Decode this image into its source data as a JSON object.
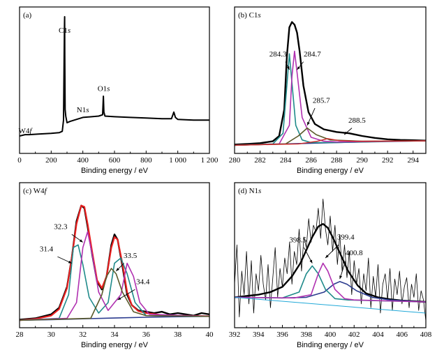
{
  "panels": [
    {
      "id": "a",
      "label": "(a)",
      "frame": {
        "x": 28,
        "y": 10,
        "w": 272,
        "h": 210
      },
      "xlim": [
        0,
        1200
      ],
      "xticks": [
        0,
        200,
        400,
        600,
        800,
        1000,
        1200
      ],
      "xtick_labels": [
        "0",
        "200",
        "400",
        "600",
        "800",
        "1 000",
        "1 200"
      ],
      "xlabel": "Binding energy / eV",
      "ylim": [
        0,
        100
      ],
      "annotations": [
        {
          "text": "C1s",
          "x": 285,
          "y": 88
        },
        {
          "text": "O1s",
          "x": 532,
          "y": 44
        },
        {
          "text": "N1s",
          "x": 400,
          "y": 28
        },
        {
          "text": "W4f",
          "x": 35,
          "y": 12
        }
      ],
      "series": [
        {
          "color": "#000000",
          "width": 2.0,
          "x": [
            0,
            35,
            60,
            120,
            200,
            250,
            270,
            278,
            282,
            284,
            285,
            286,
            288,
            292,
            300,
            320,
            400,
            500,
            525,
            530,
            533,
            540,
            600,
            700,
            800,
            900,
            960,
            975,
            985,
            1000,
            1100,
            1200
          ],
          "y": [
            10,
            11,
            11,
            11.5,
            12,
            12.5,
            13.5,
            22,
            70,
            95,
            100,
            70,
            30,
            25,
            20,
            21,
            24,
            25,
            26,
            40,
            28,
            25,
            24.5,
            24,
            23.5,
            23,
            23,
            28,
            24,
            22.5,
            22,
            22
          ]
        }
      ]
    },
    {
      "id": "b",
      "label": "(b) C1s",
      "frame": {
        "x": 336,
        "y": 10,
        "w": 274,
        "h": 210
      },
      "xlim": [
        280,
        295
      ],
      "xticks": [
        280,
        282,
        284,
        286,
        288,
        290,
        292,
        294
      ],
      "xtick_labels": [
        "280",
        "282",
        "284",
        "286",
        "288",
        "290",
        "292",
        "294"
      ],
      "xlabel": "Binding energy / eV",
      "ylim": [
        0,
        100
      ],
      "annotations": [
        {
          "text": "284.3",
          "x": 283.4,
          "y": 70
        },
        {
          "text": "284.7",
          "x": 286.1,
          "y": 70
        },
        {
          "text": "285.7",
          "x": 286.8,
          "y": 35
        },
        {
          "text": "288.5",
          "x": 289.6,
          "y": 20
        }
      ],
      "series": [
        {
          "color": "#000000",
          "width": 2.4,
          "x": [
            280,
            281,
            282,
            283,
            283.5,
            283.9,
            284.1,
            284.3,
            284.5,
            284.7,
            284.9,
            285.1,
            285.4,
            285.8,
            286.3,
            287,
            288,
            289,
            290,
            291,
            292,
            293,
            294,
            295
          ],
          "y": [
            3.5,
            4,
            4.6,
            6,
            10,
            30,
            70,
            92,
            96,
            94,
            88,
            74,
            48,
            28,
            19,
            15,
            13,
            12,
            10,
            8.5,
            7.5,
            7,
            6.8,
            6.5
          ]
        },
        {
          "color": "#2a3a8e",
          "width": 1.6,
          "x": [
            280,
            282,
            284,
            286,
            288,
            290,
            292,
            294,
            295
          ],
          "y": [
            3,
            3.5,
            4,
            4.5,
            5,
            5.5,
            6,
            6.2,
            6.3
          ]
        },
        {
          "color": "#1f8a8a",
          "width": 1.6,
          "x": [
            280,
            283,
            283.8,
            284.1,
            284.3,
            284.5,
            284.8,
            285.3,
            286,
            288,
            295
          ],
          "y": [
            3,
            4,
            12,
            48,
            72,
            50,
            18,
            7,
            5,
            5,
            6.3
          ]
        },
        {
          "color": "#b030b0",
          "width": 1.6,
          "x": [
            280,
            283.5,
            284.3,
            284.5,
            284.7,
            284.9,
            285.3,
            286,
            287,
            288,
            295
          ],
          "y": [
            3,
            4,
            18,
            55,
            74,
            58,
            24,
            9,
            6,
            5.5,
            6.3
          ]
        },
        {
          "color": "#5a5a2a",
          "width": 1.6,
          "x": [
            280,
            284,
            285,
            285.7,
            286.4,
            287.5,
            290,
            295
          ],
          "y": [
            3,
            4,
            10,
            16,
            11,
            7,
            6,
            6.3
          ]
        },
        {
          "color": "#cc2a2a",
          "width": 1.4,
          "x": [
            280,
            285,
            286.5,
            287.3,
            288.2,
            289.5,
            295
          ],
          "y": [
            3,
            4,
            6,
            8,
            6.5,
            6,
            6.3
          ]
        }
      ]
    },
    {
      "id": "c",
      "label": "(c) W4f",
      "frame": {
        "x": 28,
        "y": 262,
        "w": 272,
        "h": 208
      },
      "xlim": [
        28,
        40
      ],
      "xticks": [
        28,
        30,
        32,
        34,
        36,
        38,
        40
      ],
      "xtick_labels": [
        "28",
        "30",
        "32",
        "34",
        "36",
        "38",
        "40"
      ],
      "xlabel": "Binding energy / eV",
      "ylim": [
        0,
        100
      ],
      "annotations": [
        {
          "text": "32.3",
          "x": 30.6,
          "y": 72
        },
        {
          "text": "31.4",
          "x": 29.7,
          "y": 55
        },
        {
          "text": "33.5",
          "x": 35.0,
          "y": 50
        },
        {
          "text": "34.4",
          "x": 35.8,
          "y": 30
        }
      ],
      "series": [
        {
          "color": "#000000",
          "width": 2.4,
          "x": [
            28,
            29,
            30,
            30.5,
            31,
            31.3,
            31.6,
            31.9,
            32.1,
            32.3,
            32.6,
            32.9,
            33.2,
            33.5,
            33.8,
            34.0,
            34.2,
            34.5,
            34.8,
            35.1,
            35.5,
            36,
            36.5,
            37,
            37.5,
            38,
            38.5,
            39,
            39.5,
            40
          ],
          "y": [
            3,
            4,
            7,
            12,
            28,
            50,
            78,
            90,
            88,
            74,
            52,
            32,
            26,
            36,
            60,
            68,
            64,
            44,
            22,
            14,
            10,
            9,
            8,
            9,
            7,
            8,
            7,
            6,
            8,
            7
          ]
        },
        {
          "color": "#e82020",
          "width": 2.2,
          "x": [
            28,
            29,
            30,
            30.5,
            31,
            31.3,
            31.6,
            31.9,
            32.1,
            32.3,
            32.6,
            32.9,
            33.2,
            33.5,
            33.8,
            34.0,
            34.2,
            34.5,
            34.8,
            35.1,
            35.5,
            36,
            37,
            38,
            39,
            40
          ],
          "y": [
            2.5,
            3.5,
            6,
            11,
            27,
            50,
            76,
            90,
            89,
            76,
            54,
            33,
            27,
            36,
            58,
            66,
            64,
            46,
            24,
            14,
            9.5,
            8,
            6.5,
            6,
            5.8,
            5.6
          ]
        },
        {
          "color": "#2a3a8e",
          "width": 1.6,
          "x": [
            28,
            30,
            32,
            34,
            36,
            38,
            40
          ],
          "y": [
            2.5,
            3,
            3.6,
            4.2,
            4.8,
            5.2,
            5.5
          ]
        },
        {
          "color": "#1f8a8a",
          "width": 1.6,
          "x": [
            28,
            30.5,
            31.1,
            31.4,
            31.7,
            32.0,
            32.4,
            33,
            33.6,
            34.0,
            34.4,
            34.8,
            35.3,
            36,
            40
          ],
          "y": [
            2.5,
            4,
            22,
            58,
            60,
            45,
            20,
            8,
            16,
            46,
            50,
            38,
            16,
            6,
            5.5
          ]
        },
        {
          "color": "#b030b0",
          "width": 1.6,
          "x": [
            28,
            31,
            31.6,
            32.0,
            32.3,
            32.6,
            33.0,
            33.6,
            34.4,
            34.8,
            35.2,
            35.6,
            36.2,
            40
          ],
          "y": [
            2.5,
            4,
            16,
            58,
            70,
            52,
            24,
            10,
            22,
            46,
            36,
            16,
            7,
            5.5
          ]
        },
        {
          "color": "#5a5a2a",
          "width": 1.6,
          "x": [
            28,
            32.5,
            33.2,
            33.5,
            33.8,
            34.1,
            34.5,
            35.2,
            36,
            40
          ],
          "y": [
            2.5,
            4,
            22,
            36,
            42,
            38,
            24,
            9,
            6,
            5.5
          ]
        }
      ]
    },
    {
      "id": "d",
      "label": "(d) N1s",
      "frame": {
        "x": 336,
        "y": 262,
        "w": 274,
        "h": 208
      },
      "xlim": [
        392,
        408
      ],
      "xticks": [
        392,
        394,
        396,
        398,
        400,
        402,
        404,
        406,
        408
      ],
      "xtick_labels": [
        "392",
        "394",
        "396",
        "398",
        "400",
        "402",
        "404",
        "406",
        "408"
      ],
      "xlabel": "Binding energy / eV",
      "ylim": [
        0,
        100
      ],
      "annotations": [
        {
          "text": "398.5",
          "x": 397.3,
          "y": 62
        },
        {
          "text": "399.4",
          "x": 401.3,
          "y": 64
        },
        {
          "text": "400.8",
          "x": 402.0,
          "y": 52
        }
      ],
      "series": [
        {
          "color": "#000000",
          "width": 0.8,
          "x": [
            392,
            392.2,
            392.4,
            392.6,
            392.8,
            393,
            393.2,
            393.4,
            393.6,
            393.8,
            394,
            394.2,
            394.4,
            394.6,
            394.8,
            395,
            395.2,
            395.4,
            395.6,
            395.8,
            396,
            396.2,
            396.4,
            396.6,
            396.8,
            397,
            397.2,
            397.4,
            397.6,
            397.8,
            398,
            398.2,
            398.4,
            398.6,
            398.8,
            399,
            399.2,
            399.4,
            399.6,
            399.8,
            400,
            400.2,
            400.4,
            400.6,
            400.8,
            401,
            401.2,
            401.4,
            401.6,
            401.8,
            402,
            402.2,
            402.4,
            402.6,
            402.8,
            403,
            403.2,
            403.4,
            403.6,
            403.8,
            404,
            404.2,
            404.4,
            404.6,
            404.8,
            405,
            405.2,
            405.4,
            405.6,
            405.8,
            406,
            406.2,
            406.4,
            406.6,
            406.8,
            407,
            407.2,
            407.4,
            407.6,
            407.8,
            408
          ],
          "y": [
            30,
            60,
            5,
            40,
            22,
            55,
            15,
            48,
            8,
            38,
            25,
            52,
            30,
            18,
            45,
            12,
            35,
            58,
            20,
            42,
            28,
            50,
            38,
            62,
            30,
            55,
            45,
            72,
            40,
            66,
            58,
            80,
            62,
            75,
            70,
            88,
            65,
            95,
            72,
            60,
            82,
            55,
            75,
            45,
            68,
            40,
            60,
            35,
            55,
            22,
            48,
            30,
            42,
            15,
            38,
            25,
            50,
            12,
            36,
            20,
            45,
            8,
            30,
            38,
            18,
            42,
            10,
            34,
            22,
            40,
            15,
            28,
            35,
            12,
            30,
            20,
            38,
            10,
            25,
            18,
            2
          ]
        },
        {
          "color": "#000000",
          "width": 2.4,
          "x": [
            392,
            393,
            394,
            395,
            396,
            396.8,
            397.5,
            398,
            398.5,
            399,
            399.4,
            399.8,
            400.2,
            400.8,
            401.5,
            402.3,
            403,
            404,
            405,
            406,
            407,
            408
          ],
          "y": [
            20,
            21,
            22,
            24,
            28,
            36,
            46,
            56,
            66,
            74,
            76,
            73,
            66,
            54,
            40,
            29,
            23,
            20,
            18.5,
            17.5,
            17,
            16.5
          ]
        },
        {
          "color": "#2a3a8e",
          "width": 1.6,
          "x": [
            392,
            396,
            398,
            399.5,
            400.3,
            400.8,
            401.4,
            402.2,
            403.5,
            405,
            408
          ],
          "y": [
            20,
            19.5,
            20,
            24,
            30,
            32,
            30,
            25,
            20,
            18,
            16.5
          ]
        },
        {
          "color": "#1f8a8a",
          "width": 1.6,
          "x": [
            392,
            396,
            397.4,
            398.0,
            398.5,
            399.0,
            399.6,
            400.4,
            401.5,
            408
          ],
          "y": [
            20,
            19.5,
            24,
            38,
            44,
            38,
            26,
            19,
            18,
            16.5
          ]
        },
        {
          "color": "#b030b0",
          "width": 1.6,
          "x": [
            392,
            397,
            398.4,
            399.0,
            399.4,
            399.8,
            400.4,
            401.2,
            402,
            408
          ],
          "y": [
            20,
            19.5,
            22,
            38,
            46,
            40,
            26,
            19,
            18,
            16.5
          ]
        },
        {
          "color": "#20a8d8",
          "width": 1.0,
          "x": [
            392,
            408
          ],
          "y": [
            20,
            8
          ]
        }
      ]
    }
  ]
}
